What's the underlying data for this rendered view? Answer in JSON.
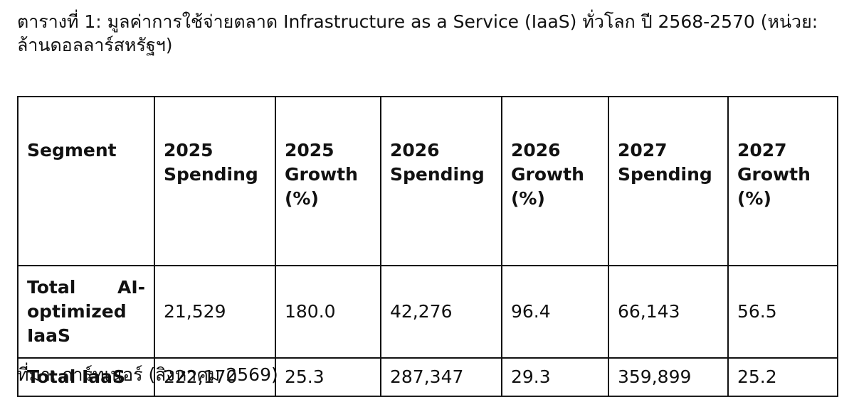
{
  "caption": "ตารางที่ 1: มูลค่าการใช้จ่ายตลาด Infrastructure as a Service (IaaS) ทั่วโลก ปี 2568-2570 (หน่วย: ล้านดอลลาร์สหรัฐฯ)",
  "table": {
    "headers": [
      "Segment",
      "2025 Spending",
      "2025 Growth (%)",
      "2026 Spending",
      "2026 Growth (%)",
      "2027 Spending",
      "2027 Growth (%)"
    ],
    "rows": [
      {
        "segment": "Total AI-optimized IaaS",
        "spending_2025": "21,529",
        "growth_2025": "180.0",
        "spending_2026": "42,276",
        "growth_2026": "96.4",
        "spending_2027": "66,143",
        "growth_2027": "56.5"
      },
      {
        "segment": "Total IaaS",
        "spending_2025": "222,170",
        "growth_2025": "25.3",
        "spending_2026": "287,347",
        "growth_2026": "29.3",
        "spending_2027": "359,899",
        "growth_2027": "25.2"
      }
    ]
  },
  "source": "ที่มา: การ์ทเนอร์ (สิงหาคม 2569)",
  "colors": {
    "text": "#111111",
    "border": "#111111",
    "background": "#ffffff"
  }
}
